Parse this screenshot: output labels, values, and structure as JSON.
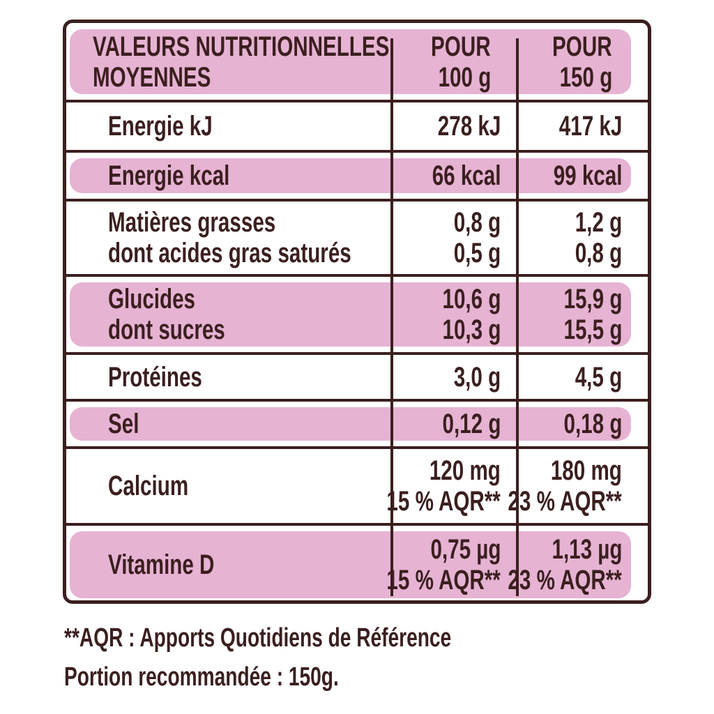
{
  "table": {
    "header": [
      [
        "VALEURS NUTRITIONNELLES",
        "MOYENNES"
      ],
      [
        "POUR",
        "100 g"
      ],
      [
        "POUR",
        "150 g"
      ]
    ],
    "rows": [
      [
        [
          "Energie kJ"
        ],
        [
          "278 kJ"
        ],
        [
          "417 kJ"
        ]
      ],
      [
        [
          "Energie kcal"
        ],
        [
          "66 kcal"
        ],
        [
          "99 kcal"
        ]
      ],
      [
        [
          "Matières grasses",
          "dont acides gras saturés"
        ],
        [
          "0,8 g",
          "0,5 g"
        ],
        [
          "1,2 g",
          "0,8 g"
        ]
      ],
      [
        [
          "Glucides",
          "dont sucres"
        ],
        [
          "10,6 g",
          "10,3 g"
        ],
        [
          "15,9 g",
          "15,5 g"
        ]
      ],
      [
        [
          "Protéines"
        ],
        [
          "3,0 g"
        ],
        [
          "4,5 g"
        ]
      ],
      [
        [
          "Sel"
        ],
        [
          "0,12 g"
        ],
        [
          "0,18 g"
        ]
      ],
      [
        [
          "Calcium"
        ],
        [
          "120 mg",
          "15 % AQR**"
        ],
        [
          "180 mg",
          "23 % AQR**"
        ]
      ],
      [
        [
          "Vitamine D"
        ],
        [
          "0,75 µg",
          "15 % AQR**"
        ],
        [
          "1,13 µg",
          "23 % AQR**"
        ]
      ]
    ]
  },
  "footnotes": [
    "**AQR : Apports Quotidiens de Référence",
    "Portion recommandée : 150g."
  ]
}
